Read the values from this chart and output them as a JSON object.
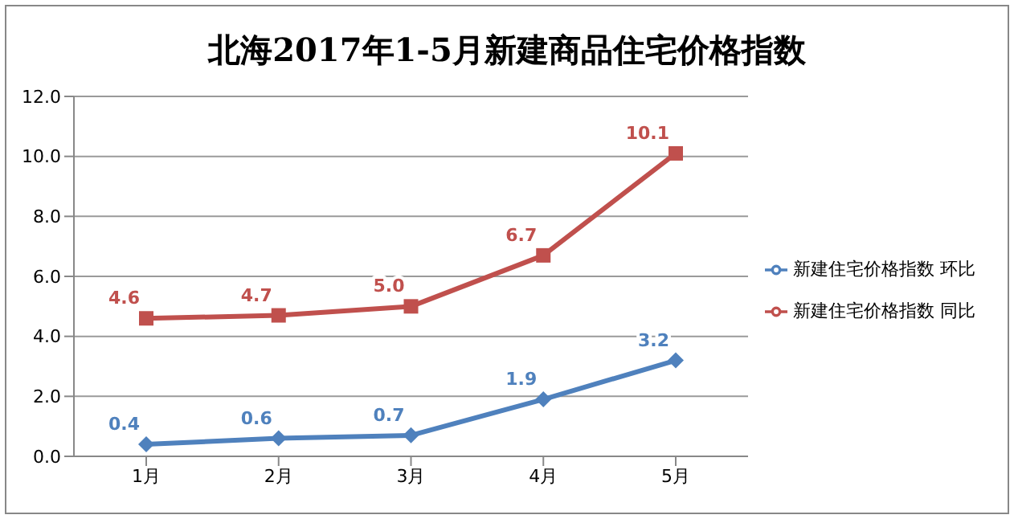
{
  "chart_data": {
    "type": "line",
    "title": "北海2017年1-5月新建商品住宅价格指数",
    "categories": [
      "1月",
      "2月",
      "3月",
      "4月",
      "5月"
    ],
    "series": [
      {
        "name": "新建住宅价格指数 环比",
        "color": "#4f81bd",
        "marker": "diamond",
        "values": [
          0.4,
          0.6,
          0.7,
          1.9,
          3.2
        ],
        "value_labels": [
          "0.4",
          "0.6",
          "0.7",
          "1.9",
          "3.2"
        ]
      },
      {
        "name": "新建住宅价格指数 同比",
        "color": "#c0504d",
        "marker": "square",
        "values": [
          4.6,
          4.7,
          5.0,
          6.7,
          10.1
        ],
        "value_labels": [
          "4.6",
          "4.7",
          "5.0",
          "6.7",
          "10.1"
        ]
      }
    ],
    "ylim": [
      0,
      12
    ],
    "yticks": [
      {
        "value": 0,
        "label": "0.0"
      },
      {
        "value": 2,
        "label": "2.0"
      },
      {
        "value": 4,
        "label": "4.0"
      },
      {
        "value": 6,
        "label": "6.0"
      },
      {
        "value": 8,
        "label": "8.0"
      },
      {
        "value": 10,
        "label": "10.0"
      },
      {
        "value": 12,
        "label": "12.0"
      }
    ],
    "grid": "y",
    "legend": "right"
  }
}
